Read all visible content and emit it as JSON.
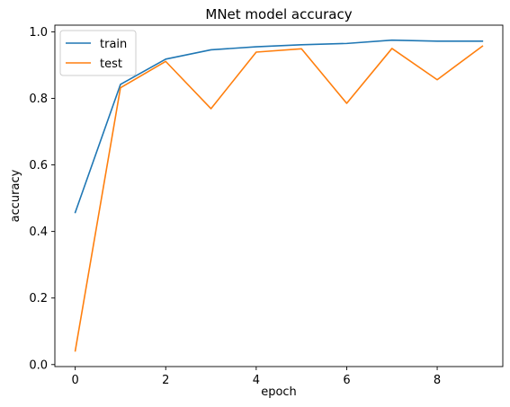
{
  "chart_data": {
    "type": "line",
    "title": "MNet model accuracy",
    "xlabel": "epoch",
    "ylabel": "accuracy",
    "x": [
      0,
      1,
      2,
      3,
      4,
      5,
      6,
      7,
      8,
      9
    ],
    "xlim": [
      -0.45,
      9.45
    ],
    "ylim": [
      -0.006,
      1.02
    ],
    "xticks": [
      0,
      2,
      4,
      6,
      8
    ],
    "yticks": [
      0.0,
      0.2,
      0.4,
      0.6,
      0.8,
      1.0
    ],
    "xtick_labels": [
      "0",
      "2",
      "4",
      "6",
      "8"
    ],
    "ytick_labels": [
      "0.0",
      "0.2",
      "0.4",
      "0.6",
      "0.8",
      "1.0"
    ],
    "grid": false,
    "legend_position": "upper-left",
    "series": [
      {
        "name": "train",
        "color": "#1f77b4",
        "values": [
          0.457,
          0.842,
          0.918,
          0.946,
          0.955,
          0.961,
          0.965,
          0.975,
          0.972,
          0.972
        ]
      },
      {
        "name": "test",
        "color": "#ff7f0e",
        "values": [
          0.041,
          0.832,
          0.911,
          0.769,
          0.939,
          0.949,
          0.785,
          0.95,
          0.856,
          0.957
        ]
      }
    ]
  }
}
